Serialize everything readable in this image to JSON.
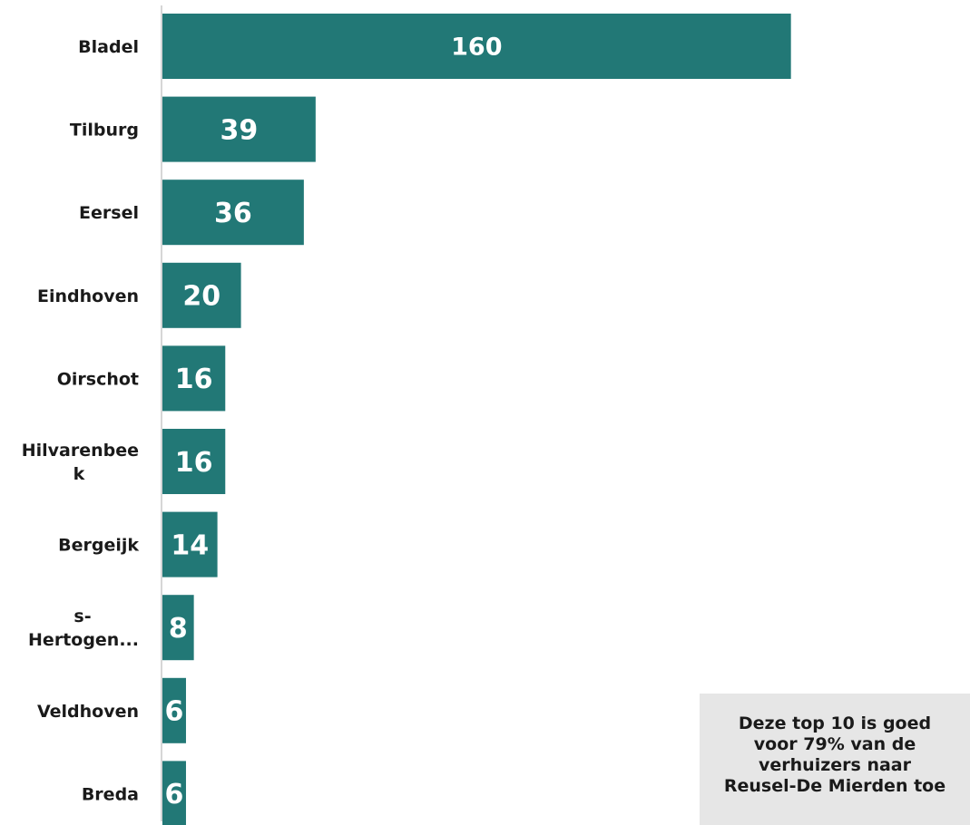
{
  "chart_data": {
    "type": "bar",
    "orientation": "horizontal",
    "categories": [
      "Bladel",
      "Tilburg",
      "Eersel",
      "Eindhoven",
      "Oirschot",
      "Hilvarenbeek",
      "Bergeijk",
      "s-Hertogen...",
      "Veldhoven",
      "Breda"
    ],
    "category_label_lines": [
      [
        "Bladel"
      ],
      [
        "Tilburg"
      ],
      [
        "Eersel"
      ],
      [
        "Eindhoven"
      ],
      [
        "Oirschot"
      ],
      [
        "Hilvarenbee",
        "k"
      ],
      [
        "Bergeijk"
      ],
      [
        "s-",
        "Hertogen..."
      ],
      [
        "Veldhoven"
      ],
      [
        "Breda"
      ]
    ],
    "values": [
      160,
      39,
      36,
      20,
      16,
      16,
      14,
      8,
      6,
      6
    ],
    "xlim": [
      0,
      161
    ],
    "bar_color": "#227876",
    "axis_color": "#c8c8c8",
    "title": "",
    "xlabel": "",
    "ylabel": "",
    "grid": false,
    "legend": "none"
  },
  "callout": {
    "lines": [
      "Deze top 10 is goed",
      "voor 79% van de",
      "verhuizers naar",
      "Reusel-De Mierden toe"
    ],
    "background": "#e6e6e6"
  }
}
